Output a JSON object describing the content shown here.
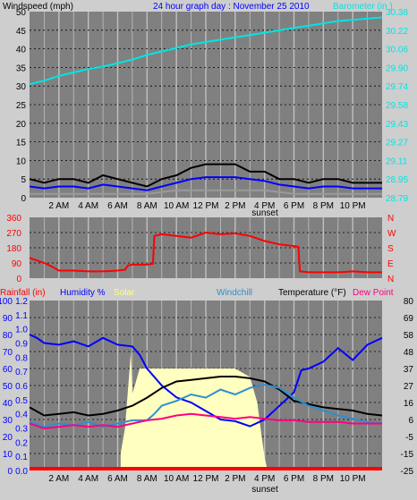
{
  "header": {
    "wind_label": "Windspeed (mph)",
    "title": "24 hour graph day : November 25 2010",
    "baro_label": "Barometer (in )"
  },
  "wind_panel": {
    "left_ticks": [
      "50",
      "45",
      "40",
      "35",
      "30",
      "25",
      "20",
      "15",
      "10",
      "5",
      "0"
    ],
    "right_ticks": [
      "30.38",
      "30.22",
      "30.06",
      "29.90",
      "29.74",
      "29.58",
      "29.43",
      "29.27",
      "29.11",
      "28.95",
      "28.79"
    ],
    "x_ticks": [
      "2 AM",
      "4 AM",
      "6 AM",
      "8 AM",
      "10 AM",
      "12 PM",
      "2 PM",
      "4 PM",
      "6 PM",
      "8 PM",
      "10 PM"
    ],
    "sunset_label": "sunset"
  },
  "dir_panel": {
    "left_ticks": [
      "360",
      "270",
      "180",
      "90",
      "0"
    ],
    "right_letters": [
      "N",
      "W",
      "S",
      "E",
      "N"
    ]
  },
  "temp_panel": {
    "header": {
      "rain": "Rainfall (in)",
      "humidity": "Humidity %",
      "solar": "Solar",
      "windchill": "Windchill",
      "temperature": "Temperature (°F)",
      "dewpoint": "Dew Point"
    },
    "humidity_ticks": [
      "100",
      "90",
      "80",
      "70",
      "60",
      "50",
      "40",
      "30",
      "20",
      "10",
      "0"
    ],
    "rain_ticks": [
      "1.2",
      "1.1",
      "1.0",
      "0.9",
      "0.8",
      "0.7",
      "0.6",
      "0.5",
      "0.4",
      "0.3",
      "0.2",
      "0.1",
      "0.0"
    ],
    "temp_ticks": [
      "80",
      "69",
      "58",
      "48",
      "37",
      "27",
      "16",
      "6",
      "-5",
      "-15",
      "-25"
    ],
    "x_ticks": [
      "2 AM",
      "4 AM",
      "6 AM",
      "8 AM",
      "10 AM",
      "12 PM",
      "2 PM",
      "4 PM",
      "6 PM",
      "8 PM",
      "10 PM"
    ],
    "sunset_label": "sunset"
  },
  "colors": {
    "bg": "#cecece",
    "plot": "#808080",
    "grid": "#c0c0c0",
    "wind_gust": "#000000",
    "wind_avg": "#0000ff",
    "wind_low": "#9a9a9a",
    "barometer": "#00e5e5",
    "direction": "#ff0000",
    "humidity": "#0000ff",
    "temperature": "#000000",
    "windchill": "#2d8fd0",
    "dewpoint": "#ff0080",
    "solar": "#ffffc0",
    "rain": "#ff0000"
  },
  "chart_data": [
    {
      "type": "line",
      "x_unit": "hour of day",
      "xlim": [
        0,
        24
      ],
      "ylim_left": [
        0,
        50
      ],
      "ylim_right": [
        28.79,
        30.38
      ],
      "series": [
        {
          "color": "#000000",
          "axis": "left",
          "x": [
            0,
            1,
            2,
            3,
            4,
            5,
            6,
            7,
            8,
            9,
            10,
            11,
            12,
            13,
            14,
            15,
            16,
            17,
            18,
            19,
            20,
            21,
            22,
            23,
            24
          ],
          "values": [
            5,
            4,
            5,
            5,
            4,
            6,
            5,
            4,
            3,
            5,
            6,
            8,
            9,
            9,
            9,
            7,
            7,
            5,
            5,
            4,
            5,
            5,
            4,
            4,
            4
          ]
        },
        {
          "color": "#0000ff",
          "axis": "left",
          "x": [
            0,
            1,
            2,
            3,
            4,
            5,
            6,
            7,
            8,
            9,
            10,
            11,
            12,
            13,
            14,
            15,
            16,
            17,
            18,
            19,
            20,
            21,
            22,
            23,
            24
          ],
          "values": [
            3,
            2.5,
            3,
            3,
            2.5,
            3.5,
            3,
            2.5,
            2,
            3,
            4,
            5,
            5.5,
            5.5,
            5.5,
            5,
            4.5,
            3.5,
            3,
            2.5,
            3,
            3,
            2.5,
            2.5,
            2.5
          ]
        },
        {
          "color": "#9a9a9a",
          "axis": "left",
          "x": [
            0,
            2,
            4,
            6,
            8,
            10,
            12,
            14,
            16,
            18,
            20,
            22,
            24
          ],
          "values": [
            1,
            1,
            1,
            1,
            1,
            2,
            2,
            2,
            2,
            1,
            1,
            1,
            1
          ]
        },
        {
          "color": "#00e5e5",
          "axis": "right",
          "x": [
            0,
            1,
            2,
            3,
            4,
            5,
            6,
            7,
            8,
            9,
            10,
            11,
            12,
            13,
            14,
            15,
            16,
            17,
            18,
            19,
            20,
            21,
            22,
            23,
            24
          ],
          "values": [
            29.76,
            29.79,
            29.83,
            29.86,
            29.89,
            29.91,
            29.94,
            29.97,
            30.01,
            30.04,
            30.07,
            30.1,
            30.12,
            30.14,
            30.16,
            30.18,
            30.2,
            30.22,
            30.24,
            30.26,
            30.28,
            30.3,
            30.31,
            30.32,
            30.33
          ]
        }
      ]
    },
    {
      "type": "line",
      "x_unit": "hour of day",
      "xlim": [
        0,
        24
      ],
      "ylim": [
        0,
        360
      ],
      "series": [
        {
          "color": "#ff0000",
          "x": [
            0,
            0.5,
            1,
            1.5,
            2,
            3,
            4,
            5,
            6,
            6.5,
            6.7,
            7,
            8,
            8.4,
            8.5,
            9,
            10,
            11,
            12,
            13,
            14,
            15,
            16,
            17,
            18,
            18.3,
            18.4,
            19,
            20,
            21,
            22,
            23,
            24
          ],
          "values": [
            120,
            105,
            90,
            70,
            45,
            45,
            40,
            40,
            45,
            50,
            75,
            80,
            80,
            85,
            250,
            260,
            250,
            240,
            270,
            260,
            265,
            250,
            220,
            200,
            190,
            185,
            40,
            35,
            35,
            35,
            40,
            35,
            35
          ]
        }
      ]
    },
    {
      "type": "line",
      "x_unit": "hour of day",
      "xlim": [
        0,
        24
      ],
      "ylim_humidity": [
        0,
        100
      ],
      "ylim_temperature": [
        -25,
        80
      ],
      "series": [
        {
          "color": "#0000ff",
          "axis": "humidity",
          "x": [
            0,
            0.5,
            1,
            2,
            3,
            4,
            5,
            6,
            7,
            7.5,
            8,
            9,
            10,
            11,
            12,
            13,
            14,
            15,
            16,
            17,
            18,
            18.5,
            19,
            20,
            21,
            22,
            23,
            24
          ],
          "values": [
            80,
            78,
            75,
            74,
            76,
            73,
            78,
            74,
            73,
            68,
            60,
            50,
            43,
            40,
            35,
            30,
            29,
            26,
            30,
            38,
            46,
            59,
            60,
            64,
            72,
            65,
            74,
            78
          ]
        },
        {
          "color": "#000000",
          "axis": "temperature",
          "x": [
            0,
            1,
            2,
            3,
            4,
            5,
            6,
            7,
            8,
            9,
            10,
            11,
            12,
            13,
            14,
            15,
            16,
            17,
            18,
            19,
            20,
            21,
            22,
            23,
            24
          ],
          "values": [
            14,
            9,
            10,
            11,
            9,
            10,
            12,
            15,
            20,
            26,
            30,
            31,
            32,
            33,
            33,
            32,
            30,
            25,
            18,
            16,
            14,
            13,
            12,
            10,
            9
          ]
        },
        {
          "color": "#2d8fd0",
          "axis": "temperature",
          "x": [
            0,
            1,
            2,
            3,
            4,
            5,
            6,
            7,
            8,
            8.5,
            9,
            10,
            11,
            12,
            13,
            14,
            15,
            16,
            17,
            18,
            19,
            20,
            21,
            22,
            23,
            24
          ],
          "values": [
            5,
            2,
            4,
            3,
            5,
            2,
            4,
            6,
            6,
            10,
            15,
            18,
            22,
            20,
            25,
            22,
            26,
            28,
            26,
            20,
            15,
            12,
            9,
            7,
            5,
            4
          ]
        },
        {
          "color": "#ff0080",
          "axis": "temperature",
          "x": [
            0,
            1,
            2,
            3,
            4,
            5,
            6,
            7,
            8,
            9,
            10,
            11,
            12,
            13,
            14,
            15,
            16,
            17,
            18,
            19,
            20,
            21,
            22,
            23,
            24
          ],
          "values": [
            4,
            1,
            2,
            3,
            2,
            3,
            2,
            4,
            6,
            7,
            9,
            10,
            9,
            8,
            7,
            8,
            7,
            6,
            6,
            5,
            5,
            5,
            4,
            4,
            4
          ]
        },
        {
          "color": "#ffffc0",
          "axis": "solar",
          "fill": true,
          "x": [
            6.2,
            6.5,
            6.9,
            7,
            7.5,
            8,
            9,
            10,
            11,
            12,
            13,
            14,
            15,
            15.5,
            15.8,
            16,
            16.2
          ],
          "values": [
            0.1,
            0.25,
            0.7,
            0.45,
            0.6,
            0.6,
            0.6,
            0.6,
            0.6,
            0.6,
            0.6,
            0.6,
            0.55,
            0.4,
            0.2,
            0.08,
            0
          ]
        }
      ]
    }
  ]
}
